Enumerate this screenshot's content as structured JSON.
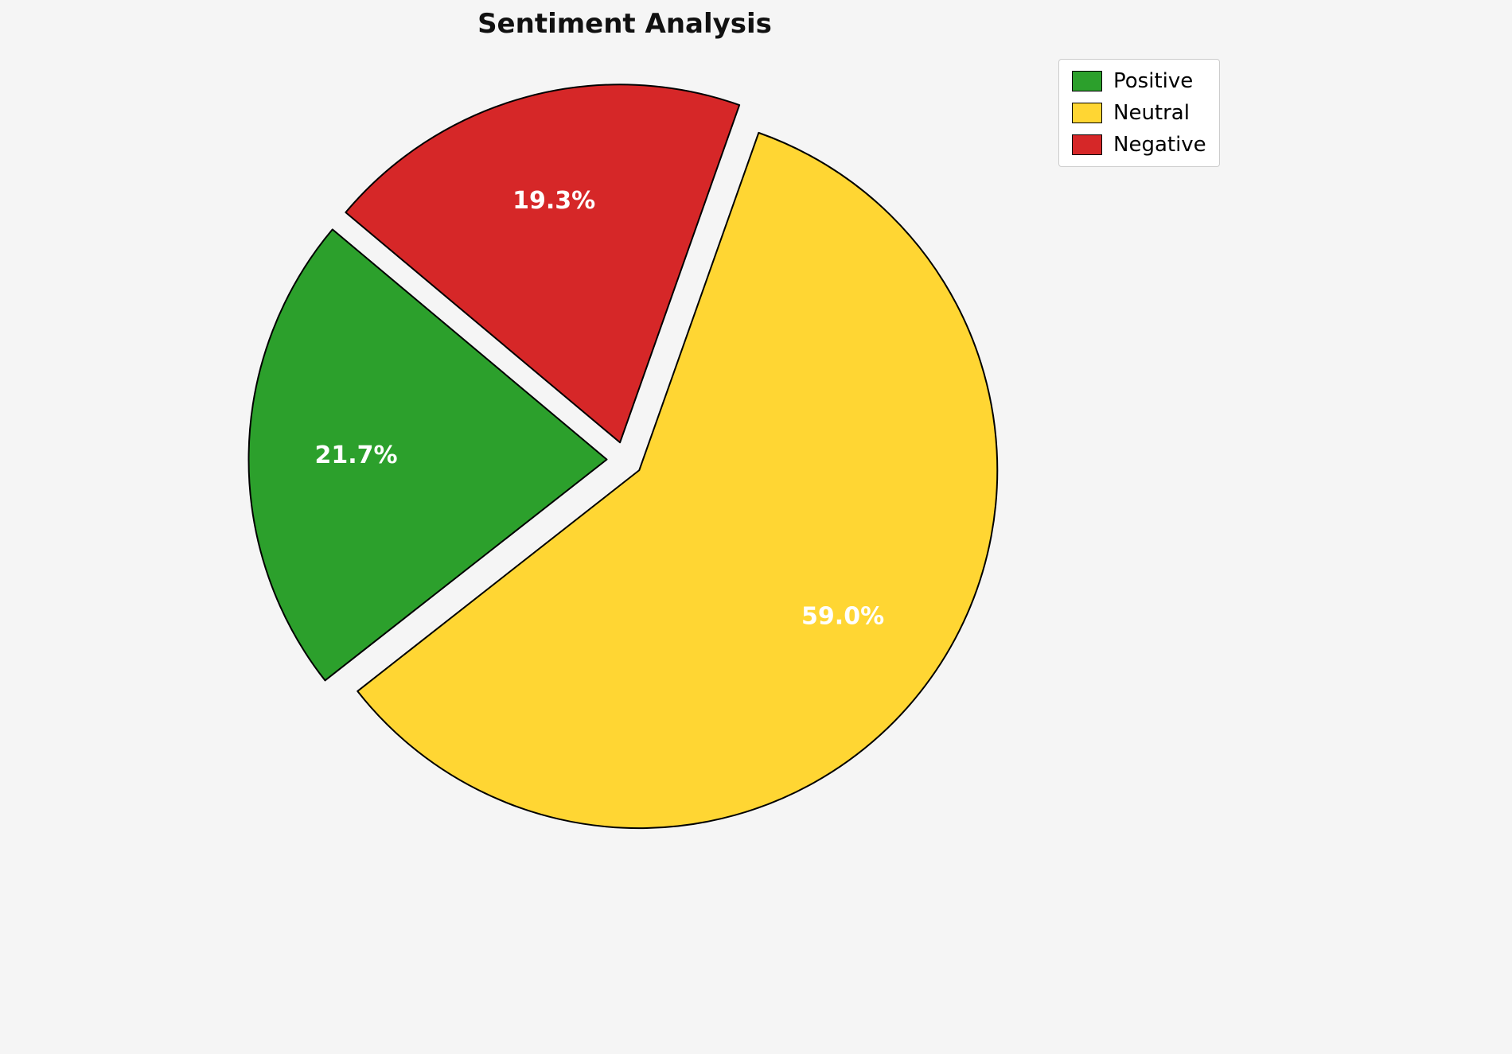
{
  "page": {
    "background": "#f5f5f5"
  },
  "chart_data": {
    "type": "pie",
    "title": "Sentiment Analysis",
    "labels": [
      "Positive",
      "Neutral",
      "Negative"
    ],
    "values": [
      21.7,
      59.0,
      19.3
    ],
    "pct_labels": [
      "21.7%",
      "59.0%",
      "19.3%"
    ],
    "colors": [
      "#2ca02c",
      "#ffd633",
      "#d62728"
    ],
    "start_angle": 140,
    "direction": "counterclockwise",
    "explode": 0.05,
    "label_distance": 0.7,
    "edge_color": "#000000",
    "label_color": "#ffffff",
    "legend": {
      "position": "upper right",
      "entries": [
        "Positive",
        "Neutral",
        "Negative"
      ]
    }
  }
}
